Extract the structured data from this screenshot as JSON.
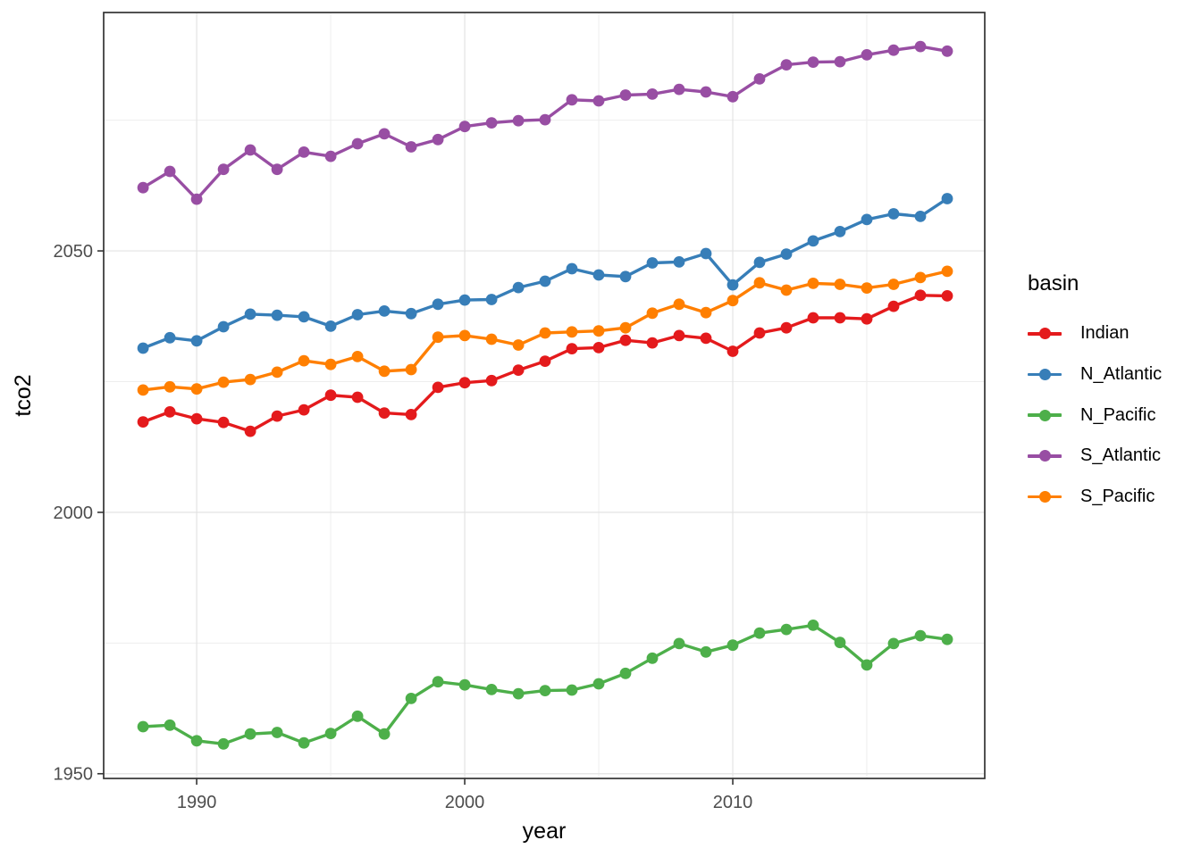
{
  "chart_data": {
    "type": "line",
    "title": "",
    "xlabel": "year",
    "ylabel": "tco2",
    "x": [
      1988,
      1989,
      1990,
      1991,
      1992,
      1993,
      1994,
      1995,
      1996,
      1997,
      1998,
      1999,
      2000,
      2001,
      2002,
      2003,
      2004,
      2005,
      2006,
      2007,
      2008,
      2009,
      2010,
      2011,
      2012,
      2013,
      2014,
      2015,
      2016,
      2017,
      2018
    ],
    "series": [
      {
        "name": "Indian",
        "color": "#e41a1c",
        "values": [
          2017.3,
          2019.2,
          2017.9,
          2017.2,
          2015.5,
          2018.4,
          2019.6,
          2022.4,
          2022.0,
          2019.0,
          2018.7,
          2023.9,
          2024.8,
          2025.2,
          2027.2,
          2028.9,
          2031.3,
          2031.5,
          2032.9,
          2032.4,
          2033.8,
          2033.3,
          2030.8,
          2034.3,
          2035.3,
          2037.2,
          2037.2,
          2037.0,
          2039.4,
          2041.5,
          2041.4
        ]
      },
      {
        "name": "N_Atlantic",
        "color": "#377eb8",
        "values": [
          2031.4,
          2033.4,
          2032.8,
          2035.5,
          2037.9,
          2037.7,
          2037.4,
          2035.6,
          2037.8,
          2038.5,
          2038.0,
          2039.8,
          2040.6,
          2040.7,
          2043.0,
          2044.2,
          2046.6,
          2045.4,
          2045.1,
          2047.7,
          2047.9,
          2049.5,
          2043.5,
          2047.8,
          2049.4,
          2051.9,
          2053.7,
          2056.0,
          2057.1,
          2056.6,
          2060.0
        ]
      },
      {
        "name": "N_Pacific",
        "color": "#4daf4a",
        "values": [
          1959.0,
          1959.3,
          1956.3,
          1955.7,
          1957.6,
          1957.9,
          1955.9,
          1957.7,
          1961.0,
          1957.6,
          1964.4,
          1967.6,
          1967.0,
          1966.1,
          1965.3,
          1965.9,
          1966.0,
          1967.2,
          1969.2,
          1972.1,
          1974.9,
          1973.3,
          1974.6,
          1976.9,
          1977.6,
          1978.4,
          1975.1,
          1970.8,
          1974.9,
          1976.4,
          1975.7
        ]
      },
      {
        "name": "S_Atlantic",
        "color": "#984ea3",
        "values": [
          2062.1,
          2065.2,
          2059.9,
          2065.6,
          2069.3,
          2065.6,
          2068.9,
          2068.1,
          2070.5,
          2072.4,
          2069.9,
          2071.3,
          2073.8,
          2074.5,
          2074.9,
          2075.1,
          2078.9,
          2078.7,
          2079.8,
          2080.0,
          2080.9,
          2080.4,
          2079.5,
          2082.9,
          2085.6,
          2086.1,
          2086.2,
          2087.5,
          2088.4,
          2089.1,
          2088.2
        ]
      },
      {
        "name": "S_Pacific",
        "color": "#ff7f00",
        "values": [
          2023.4,
          2024.0,
          2023.6,
          2024.9,
          2025.4,
          2026.8,
          2029.0,
          2028.3,
          2029.8,
          2027.0,
          2027.3,
          2033.5,
          2033.8,
          2033.1,
          2032.0,
          2034.3,
          2034.5,
          2034.7,
          2035.3,
          2038.1,
          2039.8,
          2038.2,
          2040.5,
          2043.9,
          2042.5,
          2043.8,
          2043.6,
          2042.9,
          2043.6,
          2044.9,
          2046.1
        ]
      }
    ],
    "legend": {
      "title": "basin",
      "position": "right"
    },
    "xlim": [
      1986.53,
      2019.4
    ],
    "ylim": [
      1949.1,
      2095.6
    ],
    "xticks": {
      "major": [
        1990,
        2000,
        2010
      ],
      "minor": [
        1995,
        2005,
        2015
      ]
    },
    "yticks": {
      "major": [
        1950,
        2000,
        2050
      ],
      "minor": [
        1975,
        2025,
        2075
      ]
    },
    "grid": "major+minor",
    "marker": "point",
    "style": {
      "background": "#ffffff",
      "panel_background": "#ffffff",
      "panel_border": "#333333",
      "grid_major": "#e3e3e3",
      "grid_minor": "#eeeeee",
      "tick": "#333333",
      "tick_label": "#4d4d4d",
      "axis_title": "#000000"
    }
  }
}
